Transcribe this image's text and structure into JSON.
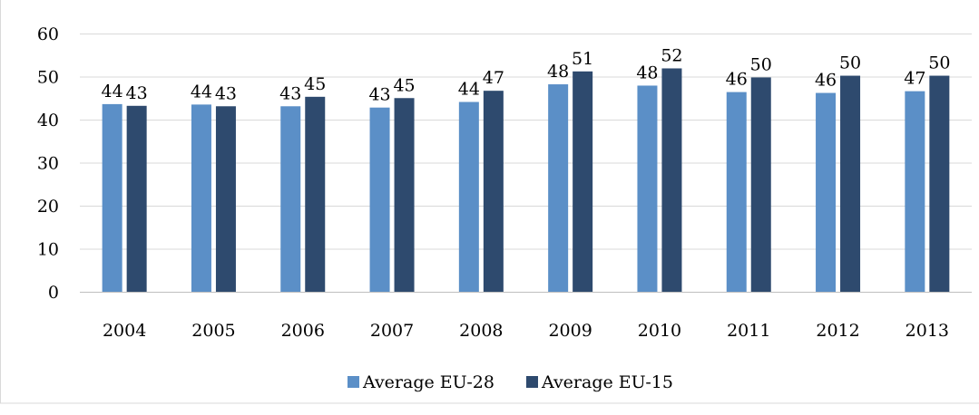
{
  "chart_data": {
    "type": "bar",
    "title": "",
    "xlabel": "",
    "ylabel": "",
    "categories": [
      "2004",
      "2005",
      "2006",
      "2007",
      "2008",
      "2009",
      "2010",
      "2011",
      "2012",
      "2013"
    ],
    "series": [
      {
        "name": "Average EU-28",
        "color": "#5b8fc7",
        "values": [
          43.6,
          43.5,
          43.1,
          42.8,
          44.1,
          48.2,
          47.9,
          46.4,
          46.2,
          46.6
        ],
        "labels": [
          "44",
          "44",
          "43",
          "43",
          "44",
          "48",
          "48",
          "46",
          "46",
          "47"
        ]
      },
      {
        "name": "Average EU-15",
        "color": "#2e4a6e",
        "values": [
          43.2,
          43.1,
          45.3,
          45.0,
          46.7,
          51.2,
          51.9,
          49.8,
          50.2,
          50.2
        ],
        "labels": [
          "43",
          "43",
          "45",
          "45",
          "47",
          "51",
          "52",
          "50",
          "50",
          "50"
        ]
      }
    ],
    "ylim": [
      0,
      60
    ],
    "yticks": [
      "0",
      "10",
      "20",
      "30",
      "40",
      "50",
      "60"
    ],
    "grid": true,
    "legend_position": "bottom"
  }
}
